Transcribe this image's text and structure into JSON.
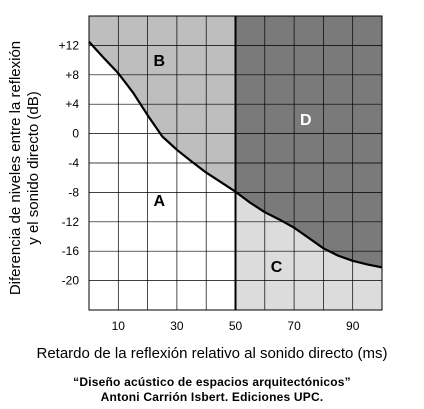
{
  "chart_data": {
    "type": "area",
    "xlabel": "Retardo de la reflexión relativo al sonido directo (ms)",
    "ylabel_lines": [
      "Diferencia de niveles entre la reflexión",
      "y el sonido directo (dB)"
    ],
    "x_ticks": [
      10,
      30,
      50,
      70,
      90
    ],
    "y_ticks": [
      "+12",
      "+8",
      "+4",
      "0",
      "-4",
      "-8",
      "-12",
      "-16",
      "-20"
    ],
    "y_tick_values": [
      12,
      8,
      4,
      0,
      -4,
      -8,
      -12,
      -16,
      -20
    ],
    "xlim": [
      0,
      100
    ],
    "ylim": [
      -24,
      16
    ],
    "grid": true,
    "boundary_curve": {
      "x": [
        0,
        5,
        10,
        15,
        20,
        25,
        30,
        35,
        40,
        45,
        50,
        55,
        60,
        65,
        70,
        75,
        80,
        85,
        90,
        95,
        100
      ],
      "y": [
        12.5,
        10.3,
        8.2,
        5.6,
        2.5,
        -0.4,
        -2.2,
        -3.8,
        -5.3,
        -6.6,
        -7.9,
        -9.4,
        -10.7,
        -11.7,
        -12.8,
        -14.2,
        -15.6,
        -16.6,
        -17.3,
        -17.8,
        -18.2
      ]
    },
    "divider_x": 50,
    "regions": [
      {
        "label": "A",
        "x": 24,
        "y": -9,
        "color": "#ffffff"
      },
      {
        "label": "B",
        "x": 24,
        "y": 10,
        "color": "#bebebe"
      },
      {
        "label": "C",
        "x": 64,
        "y": -18,
        "color": "#dcdcdc"
      },
      {
        "label": "D",
        "x": 74,
        "y": 2,
        "color": "#7a7a7a"
      }
    ],
    "colors": {
      "grid": "#000000",
      "curve": "#000000"
    }
  },
  "caption": {
    "line1": "“Diseño acústico de espacios arquitectónicos”",
    "line2": "Antoni Carrión Isbert. Ediciones UPC."
  }
}
